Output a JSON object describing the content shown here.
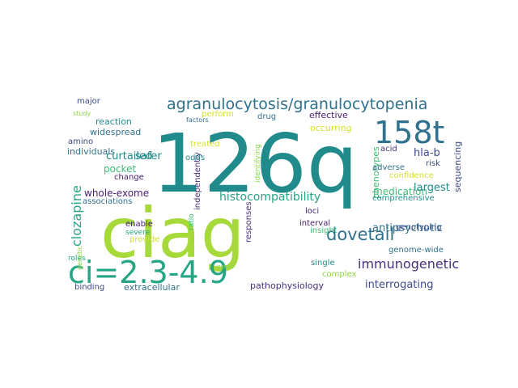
{
  "palette": {
    "teal": "#218b8c",
    "blue_teal": "#30718e",
    "green": "#3fbb75",
    "lime": "#a6d93a",
    "yellow": "#d4e030",
    "navy": "#3d4b89",
    "purple": "#472f7d",
    "dark_purple": "#481c6e",
    "sea": "#25a584",
    "light_green": "#8cd645"
  },
  "words": [
    {
      "text": "126q",
      "color": "teal"
    },
    {
      "text": "ciag",
      "color": "lime"
    },
    {
      "text": "158t",
      "color": "blue_teal"
    },
    {
      "text": "ci=2.3-4.9",
      "color": "sea"
    },
    {
      "text": "agranulocytosis/granulocytopenia",
      "color": "blue_teal"
    },
    {
      "text": "dovetail",
      "color": "blue_teal"
    },
    {
      "text": "immunogenetic",
      "color": "purple"
    },
    {
      "text": "clozapine",
      "color": "sea"
    },
    {
      "text": "histocompatibility",
      "color": "sea"
    },
    {
      "text": "whole-exome",
      "color": "dark_purple"
    },
    {
      "text": "curtailed",
      "color": "teal"
    },
    {
      "text": "antipsychotic",
      "color": "blue_teal"
    },
    {
      "text": "medication",
      "color": "green"
    },
    {
      "text": "interrogating",
      "color": "navy"
    },
    {
      "text": "largest",
      "color": "teal"
    },
    {
      "text": "hla-b",
      "color": "navy"
    },
    {
      "text": "pocket",
      "color": "green"
    },
    {
      "text": "safer",
      "color": "teal"
    },
    {
      "text": "phenotypes",
      "color": "green"
    },
    {
      "text": "sequencing",
      "color": "navy"
    },
    {
      "text": "occurring",
      "color": "yellow"
    },
    {
      "text": "effective",
      "color": "dark_purple"
    },
    {
      "text": "widespread",
      "color": "blue_teal"
    },
    {
      "text": "individuals",
      "color": "blue_teal"
    },
    {
      "text": "reaction",
      "color": "teal"
    },
    {
      "text": "amino",
      "color": "navy"
    },
    {
      "text": "major",
      "color": "navy"
    },
    {
      "text": "change",
      "color": "dark_purple"
    },
    {
      "text": "associations",
      "color": "blue_teal"
    },
    {
      "text": "acid",
      "color": "purple"
    },
    {
      "text": "adverse",
      "color": "blue_teal"
    },
    {
      "text": "risk",
      "color": "navy"
    },
    {
      "text": "confidence",
      "color": "yellow"
    },
    {
      "text": "comprehensive",
      "color": "teal"
    },
    {
      "text": "genotyping",
      "color": "navy"
    },
    {
      "text": "genome-wide",
      "color": "blue_teal"
    },
    {
      "text": "single",
      "color": "teal"
    },
    {
      "text": "complex",
      "color": "light_green"
    },
    {
      "text": "pathophysiology",
      "color": "purple"
    },
    {
      "text": "extracellular",
      "color": "blue_teal"
    },
    {
      "text": "binding",
      "color": "navy"
    },
    {
      "text": "insight",
      "color": "green"
    },
    {
      "text": "interval",
      "color": "dark_purple"
    },
    {
      "text": "loci",
      "color": "purple"
    },
    {
      "text": "responses",
      "color": "purple"
    },
    {
      "text": "independently",
      "color": "purple"
    },
    {
      "text": "ratio",
      "color": "green"
    },
    {
      "text": "odds",
      "color": "teal"
    },
    {
      "text": "treated",
      "color": "yellow"
    },
    {
      "text": "perform",
      "color": "yellow"
    },
    {
      "text": "drug",
      "color": "blue_teal"
    },
    {
      "text": "identifying",
      "color": "light_green"
    },
    {
      "text": "enable",
      "color": "dark_purple"
    },
    {
      "text": "severe",
      "color": "sea"
    },
    {
      "text": "provide",
      "color": "yellow"
    },
    {
      "text": "roles",
      "color": "sea"
    },
    {
      "text": "genetic",
      "color": "light_green"
    },
    {
      "text": "study",
      "color": "light_green"
    },
    {
      "text": "factors",
      "color": "blue_teal"
    },
    {
      "text": "genes",
      "color": "light_green"
    }
  ]
}
